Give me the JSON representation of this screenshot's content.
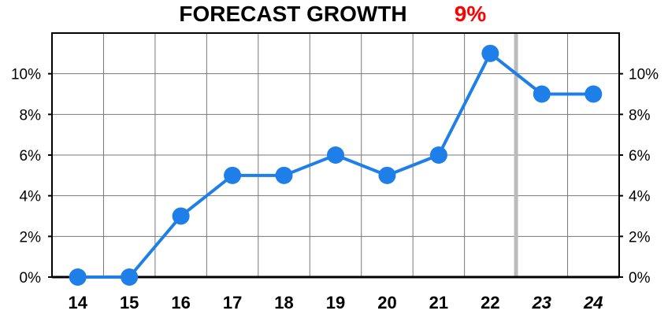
{
  "chart_data": {
    "type": "line",
    "title": "FORECAST GROWTH",
    "title_value": "9%",
    "categories": [
      "14",
      "15",
      "16",
      "17",
      "18",
      "19",
      "20",
      "21",
      "22",
      "23",
      "24"
    ],
    "forecast_categories": [
      "23",
      "24"
    ],
    "series": [
      {
        "values": [
          0,
          0,
          3,
          5,
          5,
          6,
          5,
          6,
          11,
          9,
          9
        ]
      }
    ],
    "unit": "%",
    "ylim": [
      0,
      12
    ],
    "yticks": [
      0,
      2,
      4,
      6,
      8,
      10
    ],
    "y_tick_labels": [
      "0%",
      "2%",
      "4%",
      "6%",
      "8%",
      "10%"
    ],
    "grid": true,
    "legend": "none"
  },
  "colors": {
    "series": "#1E7FE8",
    "title_value": "#FF0000",
    "grid": "#777777",
    "forecast_divider": "#BBBBBB",
    "frame": "#000000"
  }
}
